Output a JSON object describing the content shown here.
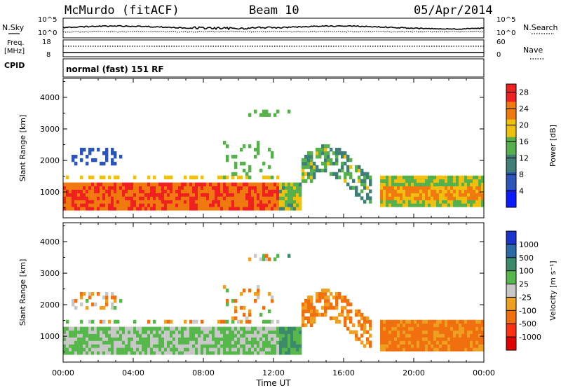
{
  "header": {
    "station": "McMurdo (fitACF)",
    "beam": "Beam 10",
    "date": "05/Apr/2014"
  },
  "panels": {
    "nsky": {
      "left_label": "N.Sky",
      "right_label": "N.Search",
      "left_top": "10^5",
      "left_bottom": "10^0",
      "right_top": "10^5",
      "right_bottom": "10^0"
    },
    "freq": {
      "left_label_1": "Freq.",
      "left_label_2": "[MHz]",
      "left_top": "18",
      "left_bottom": "8",
      "right_label": "Nave",
      "right_top": "60",
      "right_bottom": "0",
      "cpid": "CPID"
    },
    "mode": {
      "text": "normal (fast) 151 RF"
    }
  },
  "chart_data": [
    {
      "type": "heatmap",
      "title": "",
      "xlabel": "Time UT",
      "ylabel": "Slant Range [km]",
      "xlim": [
        0,
        24
      ],
      "ylim": [
        180,
        4600
      ],
      "x_ticks": [
        "00:00",
        "04:00",
        "08:00",
        "12:00",
        "16:00",
        "20:00",
        "00:00"
      ],
      "y_ticks": [
        "1000",
        "2000",
        "3000",
        "4000"
      ],
      "colorbar": {
        "label": "Power [dB]",
        "range": [
          0,
          30
        ],
        "ticks": [
          "4",
          "8",
          "12",
          "16",
          "20",
          "24",
          "28"
        ],
        "colors": [
          "#0b1aff",
          "#2b55b8",
          "#3f7f77",
          "#56b04b",
          "#f0c010",
          "#f07a10",
          "#ef2020"
        ]
      }
    },
    {
      "type": "heatmap",
      "title": "",
      "xlabel": "Time UT",
      "ylabel": "Slant Range [km]",
      "xlim": [
        0,
        24
      ],
      "ylim": [
        180,
        4600
      ],
      "x_ticks": [
        "00:00",
        "04:00",
        "08:00",
        "12:00",
        "16:00",
        "20:00",
        "00:00"
      ],
      "y_ticks": [
        "1000",
        "2000",
        "3000",
        "4000"
      ],
      "colorbar": {
        "label": "Velocity [m s⁻¹]",
        "ticks": [
          "1000",
          "500",
          "100",
          "25",
          "-25",
          "-100",
          "-500",
          "-1000"
        ],
        "colors": [
          "#1a33cc",
          "#2a6aa8",
          "#3b8a6a",
          "#56b84b",
          "#c8c8c8",
          "#f0a020",
          "#f07010",
          "#ff3010",
          "#e00000"
        ]
      }
    }
  ]
}
